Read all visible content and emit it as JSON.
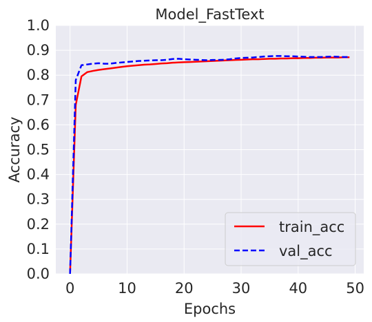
{
  "chart_data": {
    "type": "line",
    "title": "Model_FastText",
    "xlabel": "Epochs",
    "ylabel": "Accuracy",
    "xlim": [
      -2.5,
      51.5
    ],
    "ylim": [
      0.0,
      1.0
    ],
    "xticks": [
      0,
      10,
      20,
      30,
      40,
      50
    ],
    "xtick_labels": [
      "0",
      "10",
      "20",
      "30",
      "40",
      "50"
    ],
    "yticks": [
      0.0,
      0.1,
      0.2,
      0.3,
      0.4,
      0.5,
      0.6,
      0.7,
      0.8,
      0.9,
      1.0
    ],
    "ytick_labels": [
      "0.0",
      "0.1",
      "0.2",
      "0.3",
      "0.4",
      "0.5",
      "0.6",
      "0.7",
      "0.8",
      "0.9",
      "1.0"
    ],
    "grid": true,
    "legend_position": "lower-right",
    "x": [
      0,
      1,
      2,
      3,
      4,
      5,
      6,
      7,
      8,
      9,
      10,
      11,
      12,
      13,
      14,
      15,
      16,
      17,
      18,
      19,
      20,
      21,
      22,
      23,
      24,
      25,
      26,
      27,
      28,
      29,
      30,
      31,
      32,
      33,
      34,
      35,
      36,
      37,
      38,
      39,
      40,
      41,
      42,
      43,
      44,
      45,
      46,
      47,
      48,
      49
    ],
    "series": [
      {
        "name": "train_acc",
        "style": "solid",
        "color": "#ff0000",
        "values": [
          0.0,
          0.68,
          0.795,
          0.812,
          0.817,
          0.821,
          0.824,
          0.827,
          0.83,
          0.833,
          0.836,
          0.838,
          0.84,
          0.842,
          0.843,
          0.845,
          0.847,
          0.848,
          0.85,
          0.851,
          0.852,
          0.853,
          0.854,
          0.855,
          0.856,
          0.857,
          0.858,
          0.859,
          0.86,
          0.861,
          0.862,
          0.863,
          0.864,
          0.864,
          0.865,
          0.866,
          0.866,
          0.867,
          0.867,
          0.868,
          0.868,
          0.869,
          0.869,
          0.87,
          0.87,
          0.871,
          0.871,
          0.871,
          0.872,
          0.872
        ]
      },
      {
        "name": "val_acc",
        "style": "dashed",
        "color": "#0000ff",
        "values": [
          0.0,
          0.78,
          0.84,
          0.843,
          0.846,
          0.848,
          0.846,
          0.846,
          0.849,
          0.851,
          0.853,
          0.855,
          0.857,
          0.858,
          0.859,
          0.86,
          0.86,
          0.862,
          0.865,
          0.866,
          0.864,
          0.863,
          0.862,
          0.861,
          0.86,
          0.861,
          0.861,
          0.862,
          0.864,
          0.867,
          0.869,
          0.87,
          0.871,
          0.873,
          0.875,
          0.876,
          0.877,
          0.877,
          0.876,
          0.876,
          0.875,
          0.874,
          0.873,
          0.873,
          0.873,
          0.874,
          0.875,
          0.874,
          0.873,
          0.873
        ]
      }
    ]
  }
}
